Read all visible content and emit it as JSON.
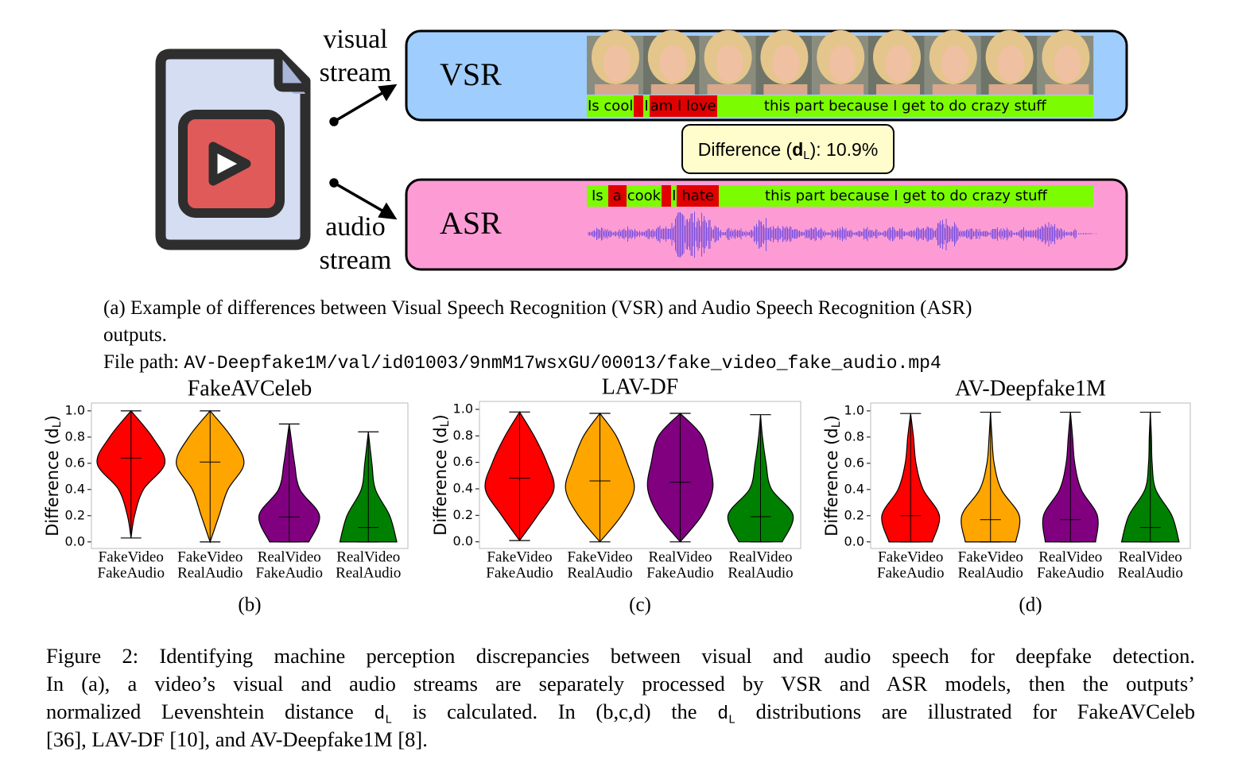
{
  "diagram": {
    "visual_label": [
      "visual",
      "stream"
    ],
    "audio_label": [
      "audio",
      "stream"
    ],
    "vsr": {
      "label": "VSR",
      "segments": [
        {
          "text": "Is cool",
          "match": true
        },
        {
          "text": "I",
          "match": true
        },
        {
          "text": "am I love",
          "match": false
        },
        {
          "text": "this part because I get to do crazy stuff",
          "match": true
        }
      ]
    },
    "asr": {
      "label": "ASR",
      "segments": [
        {
          "text": "Is",
          "match": true
        },
        {
          "text": "a",
          "match": false
        },
        {
          "text": "cook",
          "match": true
        },
        {
          "text": "I",
          "match": true
        },
        {
          "text": "hate",
          "match": false
        },
        {
          "text": "this part because I get to do crazy stuff",
          "match": true
        }
      ]
    },
    "difference": {
      "prefix": "Difference (",
      "symbol": "d",
      "sub": "L",
      "suffix": "): 10.9%"
    }
  },
  "caption_a": [
    "(a) Example of differences between Visual Speech Recognition (VSR) and Audio Speech Recognition (ASR)",
    "outputs."
  ],
  "file_path_label": "File path:",
  "file_path": "AV-Deepfake1M/val/id01003/9nmM17wsxGU/00013/fake_video_fake_audio.mp4",
  "chart_data": [
    {
      "type": "violin",
      "title": "FakeAVCeleb",
      "label": "(b)",
      "ylabel": {
        "prefix": "Difference (",
        "symbol": "d",
        "sub": "L",
        "suffix": ")"
      },
      "categories": [
        [
          "FakeVideo",
          "FakeAudio"
        ],
        [
          "FakeVideo",
          "RealAudio"
        ],
        [
          "RealVideo",
          "FakeAudio"
        ],
        [
          "RealVideo",
          "RealAudio"
        ]
      ],
      "ylim": [
        -0.05,
        1.06
      ],
      "yticks": [
        {
          "value": 0,
          "label": "0.0"
        },
        0.2,
        0.4,
        0.6,
        0.8,
        {
          "value": 1,
          "label": "1.0"
        }
      ],
      "violins": [
        {
          "color": "#ff0000",
          "median": 0.64,
          "profile": [
            [
              0.03,
              0
            ],
            [
              0.2,
              0.1
            ],
            [
              0.4,
              0.35
            ],
            [
              0.6,
              0.95
            ],
            [
              0.8,
              0.6
            ],
            [
              1.0,
              0
            ]
          ]
        },
        {
          "color": "#ffa500",
          "median": 0.61,
          "profile": [
            [
              0,
              0
            ],
            [
              0.2,
              0.25
            ],
            [
              0.4,
              0.5
            ],
            [
              0.6,
              0.95
            ],
            [
              0.8,
              0.6
            ],
            [
              1.0,
              0
            ]
          ]
        },
        {
          "color": "#800080",
          "median": 0.19,
          "profile": [
            [
              0,
              0.55
            ],
            [
              0.2,
              0.85
            ],
            [
              0.4,
              0.3
            ],
            [
              0.6,
              0.15
            ],
            [
              0.8,
              0.05
            ],
            [
              0.9,
              0
            ]
          ]
        },
        {
          "color": "#008000",
          "median": 0.11,
          "profile": [
            [
              0,
              0.8
            ],
            [
              0.2,
              0.6
            ],
            [
              0.4,
              0.2
            ],
            [
              0.6,
              0.1
            ],
            [
              0.84,
              0
            ]
          ]
        }
      ]
    },
    {
      "type": "violin",
      "title": "LAV-DF",
      "label": "(c)",
      "ylabel": {
        "prefix": "Difference (",
        "symbol": "d",
        "sub": "L",
        "suffix": ")"
      },
      "categories": [
        [
          "FakeVideo",
          "FakeAudio"
        ],
        [
          "FakeVideo",
          "RealAudio"
        ],
        [
          "RealVideo",
          "FakeAudio"
        ],
        [
          "RealVideo",
          "RealAudio"
        ]
      ],
      "ylim": [
        -0.05,
        1.06
      ],
      "yticks": [
        {
          "value": 0,
          "label": "0.0"
        },
        0.2,
        0.4,
        0.6,
        0.8,
        {
          "value": 1,
          "label": "1.0"
        }
      ],
      "violins": [
        {
          "color": "#ff0000",
          "median": 0.48,
          "profile": [
            [
              0.01,
              0
            ],
            [
              0.2,
              0.5
            ],
            [
              0.4,
              0.95
            ],
            [
              0.6,
              0.75
            ],
            [
              0.8,
              0.4
            ],
            [
              0.98,
              0
            ]
          ]
        },
        {
          "color": "#ffa500",
          "median": 0.46,
          "profile": [
            [
              0,
              0
            ],
            [
              0.2,
              0.6
            ],
            [
              0.4,
              0.95
            ],
            [
              0.6,
              0.75
            ],
            [
              0.8,
              0.45
            ],
            [
              0.97,
              0
            ]
          ]
        },
        {
          "color": "#800080",
          "median": 0.45,
          "profile": [
            [
              0,
              0
            ],
            [
              0.2,
              0.6
            ],
            [
              0.4,
              0.9
            ],
            [
              0.6,
              0.8
            ],
            [
              0.8,
              0.6
            ],
            [
              0.97,
              0
            ]
          ]
        },
        {
          "color": "#008000",
          "median": 0.19,
          "profile": [
            [
              0,
              0.6
            ],
            [
              0.2,
              0.9
            ],
            [
              0.4,
              0.3
            ],
            [
              0.6,
              0.15
            ],
            [
              0.8,
              0.05
            ],
            [
              0.96,
              0
            ]
          ]
        }
      ]
    },
    {
      "type": "violin",
      "title": "AV-Deepfake1M",
      "label": "(d)",
      "ylabel": {
        "prefix": "Difference (",
        "symbol": "d",
        "sub": "L",
        "suffix": ")"
      },
      "categories": [
        [
          "FakeVideo",
          "FakeAudio"
        ],
        [
          "FakeVideo",
          "RealAudio"
        ],
        [
          "RealVideo",
          "FakeAudio"
        ],
        [
          "RealVideo",
          "RealAudio"
        ]
      ],
      "ylim": [
        -0.05,
        1.06
      ],
      "yticks": [
        {
          "value": 0,
          "label": "0.0"
        },
        0.2,
        0.4,
        0.6,
        0.8,
        {
          "value": 1,
          "label": "1.0"
        }
      ],
      "violins": [
        {
          "color": "#ff0000",
          "median": 0.2,
          "profile": [
            [
              0,
              0.6
            ],
            [
              0.2,
              0.8
            ],
            [
              0.4,
              0.35
            ],
            [
              0.6,
              0.15
            ],
            [
              0.8,
              0.08
            ],
            [
              0.98,
              0
            ]
          ]
        },
        {
          "color": "#ffa500",
          "median": 0.17,
          "profile": [
            [
              0,
              0.7
            ],
            [
              0.2,
              0.8
            ],
            [
              0.4,
              0.3
            ],
            [
              0.6,
              0.1
            ],
            [
              0.8,
              0.04
            ],
            [
              0.99,
              0
            ]
          ]
        },
        {
          "color": "#800080",
          "median": 0.17,
          "profile": [
            [
              0,
              0.7
            ],
            [
              0.2,
              0.75
            ],
            [
              0.4,
              0.3
            ],
            [
              0.6,
              0.12
            ],
            [
              0.8,
              0.06
            ],
            [
              0.99,
              0
            ]
          ]
        },
        {
          "color": "#008000",
          "median": 0.11,
          "profile": [
            [
              0,
              0.8
            ],
            [
              0.2,
              0.6
            ],
            [
              0.4,
              0.15
            ],
            [
              0.6,
              0.05
            ],
            [
              0.8,
              0.03
            ],
            [
              0.99,
              0
            ]
          ]
        }
      ]
    }
  ],
  "caption_lines": [
    [
      "Figure 2: Identifying machine perception discrepancies between visual and audio speech for deepfake detection."
    ],
    [
      "In (a), a video’s visual and audio streams are separately processed by VSR and ASR models, then the outputs’"
    ],
    [
      "normalized Levenshtein distance ",
      {
        "code": "d",
        "sub": "L"
      },
      " is calculated. In (b,c,d) the ",
      {
        "code": "d",
        "sub": "L"
      },
      " distributions are illustrated for FakeAVCeleb"
    ],
    [
      "[36], LAV-DF [10], and AV-Deepfake1M [8]."
    ]
  ]
}
